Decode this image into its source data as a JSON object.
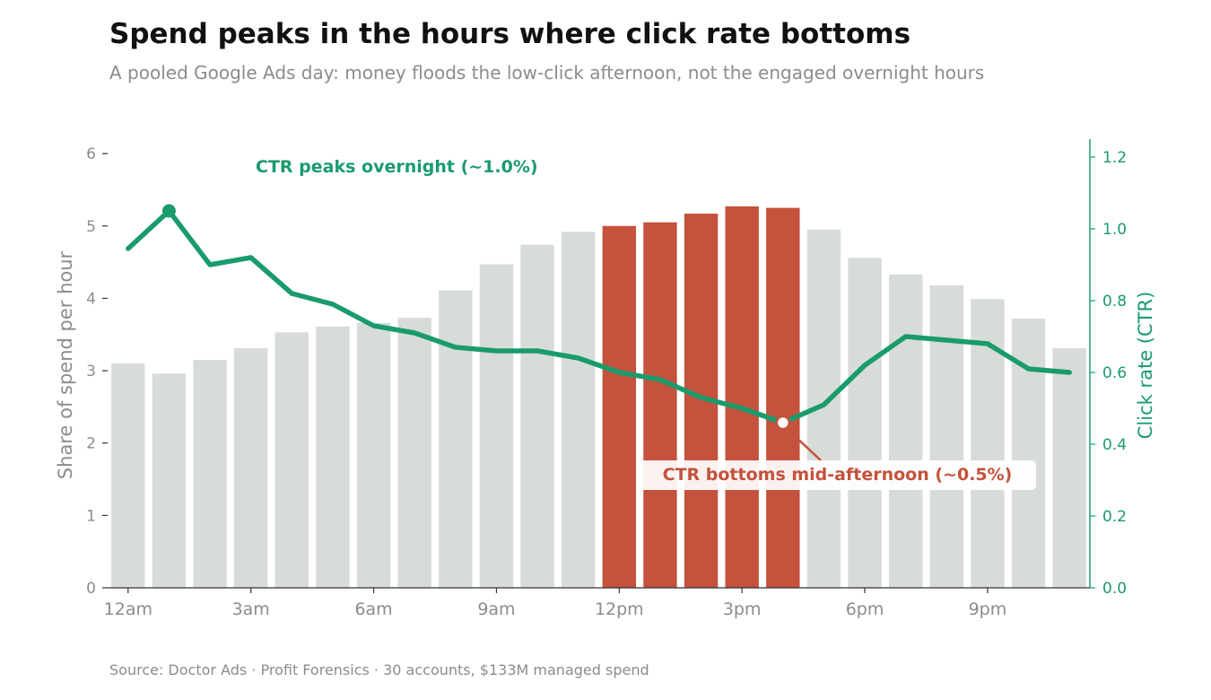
{
  "header": {
    "title": "Spend peaks in the hours where click rate bottoms",
    "subtitle": "A pooled Google Ads day: money floods the low-click afternoon, not the engaged overnight hours"
  },
  "footer": {
    "source": "Source: Doctor Ads · Profit Forensics · 30 accounts, $133M managed spend"
  },
  "colors": {
    "bar_default": "#d7dcd9",
    "bar_highlight": "#c4523c",
    "line": "#1a9b6c",
    "axis": "#333333"
  },
  "chart_data": {
    "type": "bar",
    "categories": [
      "12am",
      "1am",
      "2am",
      "3am",
      "4am",
      "5am",
      "6am",
      "7am",
      "8am",
      "9am",
      "10am",
      "11am",
      "12pm",
      "1pm",
      "2pm",
      "3pm",
      "4pm",
      "5pm",
      "6pm",
      "7pm",
      "8pm",
      "9pm",
      "10pm",
      "11pm"
    ],
    "xticks": [
      {
        "index": 0,
        "label": "12am"
      },
      {
        "index": 3,
        "label": "3am"
      },
      {
        "index": 6,
        "label": "6am"
      },
      {
        "index": 9,
        "label": "9am"
      },
      {
        "index": 12,
        "label": "12pm"
      },
      {
        "index": 15,
        "label": "3pm"
      },
      {
        "index": 18,
        "label": "6pm"
      },
      {
        "index": 21,
        "label": "9pm"
      }
    ],
    "highlight_indices": [
      12,
      13,
      14,
      15,
      16
    ],
    "series": [
      {
        "type": "bar",
        "axis": "left",
        "values": [
          3.1,
          2.96,
          3.15,
          3.31,
          3.53,
          3.61,
          3.66,
          3.73,
          4.11,
          4.47,
          4.74,
          4.92,
          5.0,
          5.05,
          5.17,
          5.27,
          5.25,
          4.95,
          4.56,
          4.33,
          4.18,
          3.99,
          3.72,
          3.31
        ]
      },
      {
        "type": "line",
        "axis": "right",
        "values": [
          0.945,
          1.05,
          0.9,
          0.92,
          0.82,
          0.79,
          0.73,
          0.71,
          0.67,
          0.66,
          0.66,
          0.64,
          0.6,
          0.58,
          0.53,
          0.5,
          0.46,
          0.51,
          0.62,
          0.7,
          0.69,
          0.68,
          0.61,
          0.6
        ]
      }
    ],
    "ylabel": "Share of spend per hour",
    "ylabel_right": "Click rate (CTR)",
    "ylim": [
      0,
      6.2
    ],
    "ylim_right": [
      0,
      1.25
    ],
    "yticks": [
      0,
      1,
      2,
      3,
      4,
      5,
      6
    ],
    "yticks_right": [
      "0.0",
      "0.2",
      "0.4",
      "0.6",
      "0.8",
      "1.0",
      "1.2"
    ],
    "annotations": [
      {
        "text": "CTR peaks overnight (~1.0%)",
        "point_index": 1,
        "color": "line"
      },
      {
        "text": "CTR bottoms mid-afternoon (~0.5%)",
        "point_index": 16,
        "color": "bar_highlight"
      }
    ],
    "grid": false,
    "legend": "none"
  }
}
